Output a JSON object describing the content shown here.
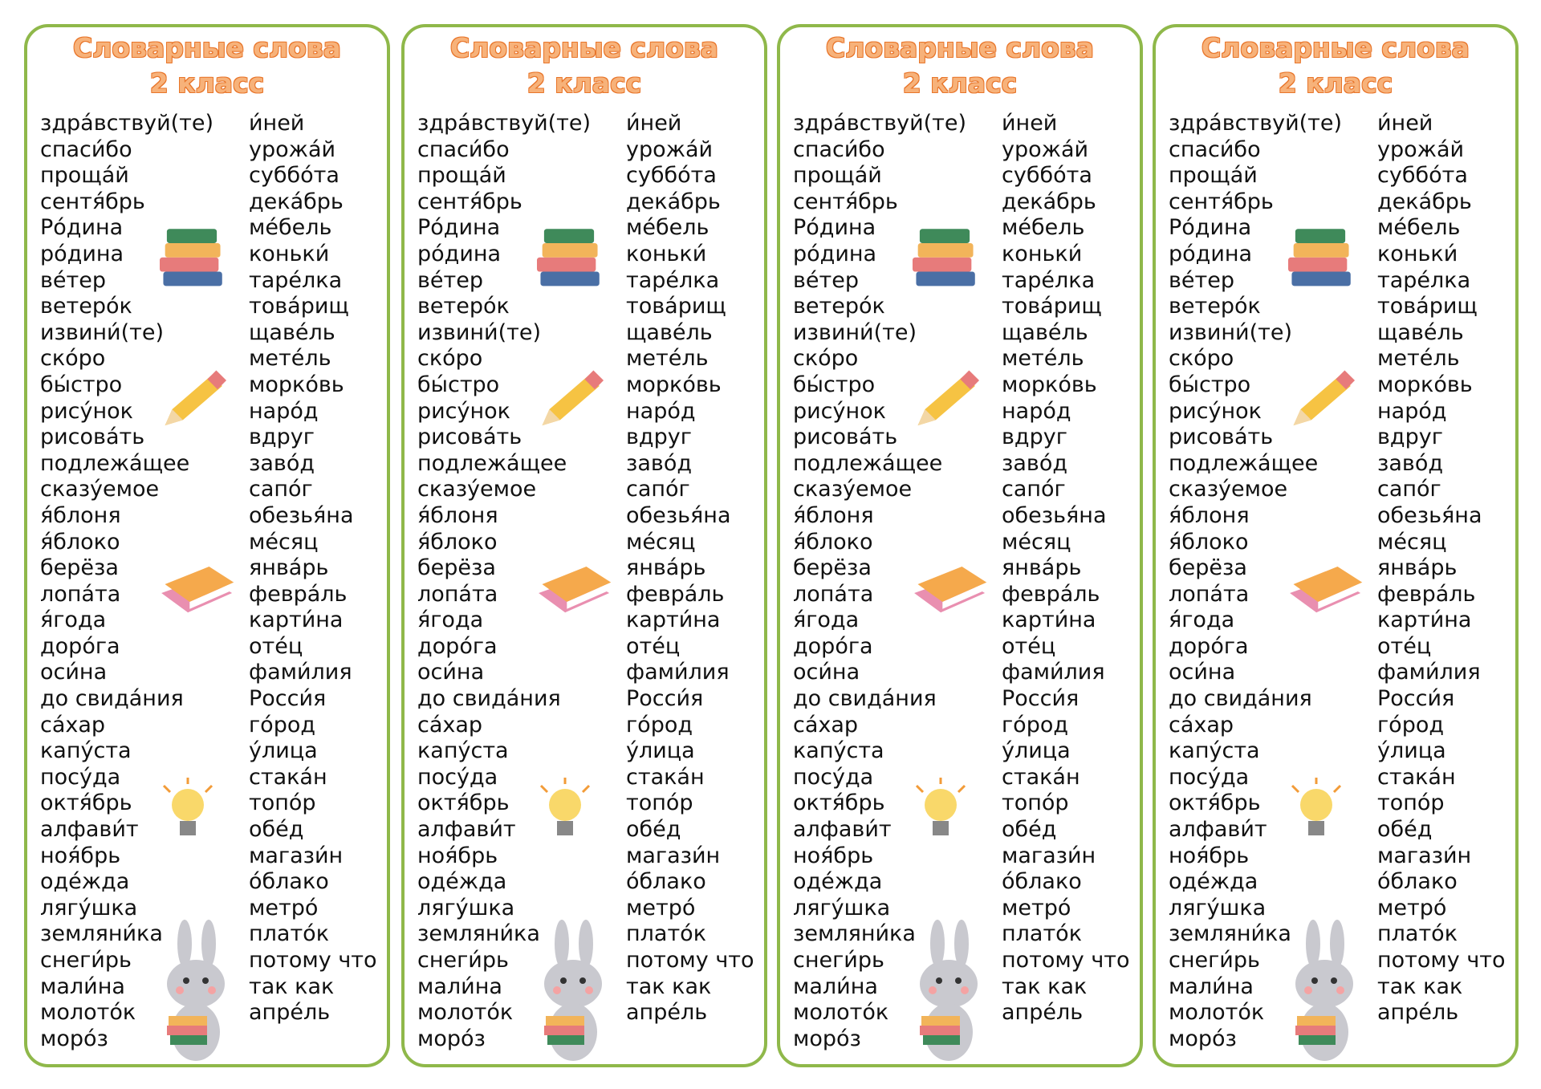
{
  "title": "Словарные слова",
  "subtitle": "2 класс",
  "columns": [
    [
      "здра́вствуй(те)",
      "спаси́бо",
      "проща́й",
      "сентя́брь",
      "Ро́дина",
      "ро́дина",
      "ве́тер",
      "ветеро́к",
      "извини́(те)",
      "ско́ро",
      "бы́стро",
      "рису́нок",
      "рисова́ть",
      "подлежа́щее",
      "сказу́емое",
      "я́блоня",
      "я́блоко",
      "берёза",
      "лопа́та",
      "я́года",
      "доро́га",
      "оси́на",
      "до свида́ния",
      "са́хар",
      "капу́ста",
      "посу́да",
      "октя́брь",
      "алфави́т",
      "ноя́брь",
      "оде́жда",
      "лягу́шка",
      "земляни́ка",
      "снеги́рь",
      "мали́на",
      "молото́к",
      "моро́з"
    ],
    [
      "и́ней",
      "урожа́й",
      "суббо́та",
      "дека́брь",
      "ме́бель",
      "коньки́",
      "таре́лка",
      "това́рищ",
      "щаве́ль",
      "мете́ль",
      "морко́вь",
      "наро́д",
      "вдруг",
      "заво́д",
      "сапо́г",
      "обезья́на",
      "ме́сяц",
      "янва́рь",
      "февра́ль",
      "карти́на",
      "оте́ц",
      "фами́лия",
      "Росси́я",
      "го́род",
      "у́лица",
      "стака́н",
      "топо́р",
      "обе́д",
      "магази́н",
      "о́блако",
      "метро́",
      "плато́к",
      "потому что",
      "так как",
      "апре́ль"
    ]
  ]
}
